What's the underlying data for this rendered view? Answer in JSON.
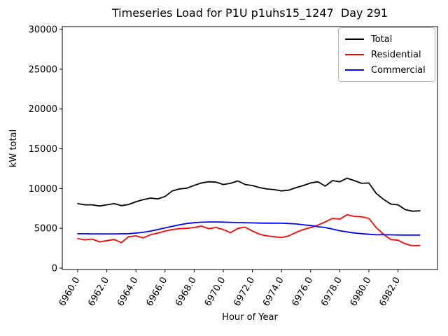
{
  "chart_data": {
    "type": "line",
    "title": "Timeseries Load for P1U p1uhs15_1247  Day 291",
    "xlabel": "Hour of Year",
    "ylabel": "kW total",
    "xlim": [
      6958.9,
      6984.7
    ],
    "ylim": [
      0,
      30000
    ],
    "grid": false,
    "legend_position": "upper right",
    "xticks": [
      6960,
      6962,
      6964,
      6966,
      6968,
      6970,
      6972,
      6974,
      6976,
      6978,
      6980,
      6982
    ],
    "xtick_labels": [
      "6960.0",
      "6962.0",
      "6964.0",
      "6966.0",
      "6968.0",
      "6970.0",
      "6972.0",
      "6974.0",
      "6976.0",
      "6978.0",
      "6980.0",
      "6982.0"
    ],
    "yticks": [
      0,
      5000,
      10000,
      15000,
      20000,
      25000,
      30000
    ],
    "ytick_labels": [
      "0",
      "5000",
      "10000",
      "15000",
      "20000",
      "25000",
      "30000"
    ],
    "x": [
      6960.0,
      6960.5,
      6961.0,
      6961.5,
      6962.0,
      6962.5,
      6963.0,
      6963.5,
      6964.0,
      6964.5,
      6965.0,
      6965.5,
      6966.0,
      6966.5,
      6967.0,
      6967.5,
      6968.0,
      6968.5,
      6969.0,
      6969.5,
      6970.0,
      6970.5,
      6971.0,
      6971.5,
      6972.0,
      6972.5,
      6973.0,
      6973.5,
      6974.0,
      6974.5,
      6975.0,
      6975.5,
      6976.0,
      6976.5,
      6977.0,
      6977.5,
      6978.0,
      6978.5,
      6979.0,
      6979.5,
      6980.0,
      6980.5,
      6981.0,
      6981.5,
      6982.0,
      6982.5,
      6983.0,
      6983.5
    ],
    "series": [
      {
        "name": "Total",
        "color": "#000000",
        "values": [
          8100,
          7950,
          7950,
          7800,
          7950,
          8100,
          7850,
          8000,
          8350,
          8600,
          8800,
          8700,
          9000,
          9700,
          9950,
          10050,
          10400,
          10700,
          10850,
          10800,
          10500,
          10650,
          10950,
          10500,
          10380,
          10120,
          9940,
          9860,
          9700,
          9800,
          10120,
          10380,
          10700,
          10850,
          10300,
          11000,
          10850,
          11300,
          11000,
          10650,
          10700,
          9400,
          8650,
          8050,
          7950,
          7350,
          7150,
          7200
        ]
      },
      {
        "name": "Residential",
        "color": "#ff0000",
        "values": [
          3700,
          3550,
          3650,
          3300,
          3450,
          3600,
          3200,
          3950,
          4050,
          3800,
          4200,
          4400,
          4650,
          4850,
          4950,
          5000,
          5100,
          5280,
          4950,
          5100,
          4850,
          4450,
          5000,
          5150,
          4650,
          4250,
          4050,
          3950,
          3850,
          4050,
          4500,
          4850,
          5100,
          5400,
          5800,
          6250,
          6150,
          6700,
          6500,
          6450,
          6250,
          5100,
          4250,
          3600,
          3500,
          3050,
          2800,
          2850
        ]
      },
      {
        "name": "Commercial",
        "color": "#0000ff",
        "values": [
          4320,
          4310,
          4300,
          4300,
          4300,
          4300,
          4310,
          4330,
          4400,
          4500,
          4650,
          4850,
          5050,
          5250,
          5450,
          5600,
          5700,
          5770,
          5800,
          5800,
          5780,
          5750,
          5720,
          5700,
          5680,
          5660,
          5650,
          5650,
          5640,
          5600,
          5550,
          5450,
          5350,
          5200,
          5100,
          4900,
          4700,
          4550,
          4420,
          4330,
          4250,
          4190,
          4200,
          4180,
          4160,
          4150,
          4150,
          4150
        ]
      }
    ]
  }
}
